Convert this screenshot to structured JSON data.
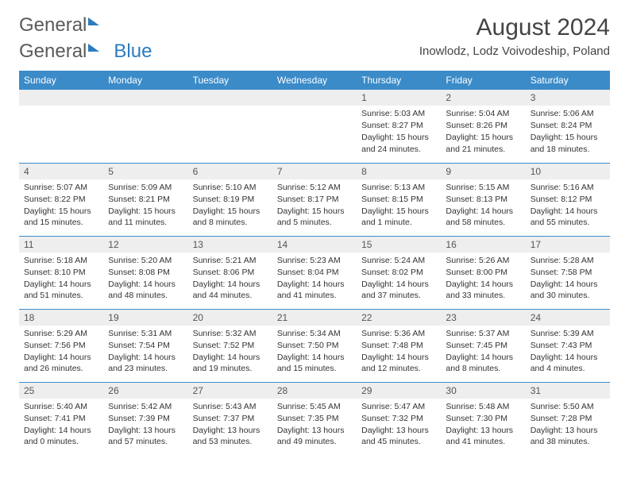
{
  "logo": {
    "part1": "General",
    "part2": "Blue"
  },
  "title": "August 2024",
  "subtitle": "Inowlodz, Lodz Voivodeship, Poland",
  "colors": {
    "header_bg": "#3b8bc8",
    "header_text": "#ffffff",
    "daynum_bg": "#eeeeee",
    "row_border": "#3b8bc8",
    "logo_gray": "#5a5a5a",
    "logo_blue": "#2b7bbf",
    "body_text": "#333333"
  },
  "typography": {
    "title_fontsize": 30,
    "subtitle_fontsize": 15,
    "header_fontsize": 12,
    "daynum_fontsize": 12,
    "cell_fontsize": 10.5
  },
  "weekdays": [
    "Sunday",
    "Monday",
    "Tuesday",
    "Wednesday",
    "Thursday",
    "Friday",
    "Saturday"
  ],
  "weeks": [
    [
      null,
      null,
      null,
      null,
      {
        "n": "1",
        "sr": "Sunrise: 5:03 AM",
        "ss": "Sunset: 8:27 PM",
        "dl": "Daylight: 15 hours and 24 minutes."
      },
      {
        "n": "2",
        "sr": "Sunrise: 5:04 AM",
        "ss": "Sunset: 8:26 PM",
        "dl": "Daylight: 15 hours and 21 minutes."
      },
      {
        "n": "3",
        "sr": "Sunrise: 5:06 AM",
        "ss": "Sunset: 8:24 PM",
        "dl": "Daylight: 15 hours and 18 minutes."
      }
    ],
    [
      {
        "n": "4",
        "sr": "Sunrise: 5:07 AM",
        "ss": "Sunset: 8:22 PM",
        "dl": "Daylight: 15 hours and 15 minutes."
      },
      {
        "n": "5",
        "sr": "Sunrise: 5:09 AM",
        "ss": "Sunset: 8:21 PM",
        "dl": "Daylight: 15 hours and 11 minutes."
      },
      {
        "n": "6",
        "sr": "Sunrise: 5:10 AM",
        "ss": "Sunset: 8:19 PM",
        "dl": "Daylight: 15 hours and 8 minutes."
      },
      {
        "n": "7",
        "sr": "Sunrise: 5:12 AM",
        "ss": "Sunset: 8:17 PM",
        "dl": "Daylight: 15 hours and 5 minutes."
      },
      {
        "n": "8",
        "sr": "Sunrise: 5:13 AM",
        "ss": "Sunset: 8:15 PM",
        "dl": "Daylight: 15 hours and 1 minute."
      },
      {
        "n": "9",
        "sr": "Sunrise: 5:15 AM",
        "ss": "Sunset: 8:13 PM",
        "dl": "Daylight: 14 hours and 58 minutes."
      },
      {
        "n": "10",
        "sr": "Sunrise: 5:16 AM",
        "ss": "Sunset: 8:12 PM",
        "dl": "Daylight: 14 hours and 55 minutes."
      }
    ],
    [
      {
        "n": "11",
        "sr": "Sunrise: 5:18 AM",
        "ss": "Sunset: 8:10 PM",
        "dl": "Daylight: 14 hours and 51 minutes."
      },
      {
        "n": "12",
        "sr": "Sunrise: 5:20 AM",
        "ss": "Sunset: 8:08 PM",
        "dl": "Daylight: 14 hours and 48 minutes."
      },
      {
        "n": "13",
        "sr": "Sunrise: 5:21 AM",
        "ss": "Sunset: 8:06 PM",
        "dl": "Daylight: 14 hours and 44 minutes."
      },
      {
        "n": "14",
        "sr": "Sunrise: 5:23 AM",
        "ss": "Sunset: 8:04 PM",
        "dl": "Daylight: 14 hours and 41 minutes."
      },
      {
        "n": "15",
        "sr": "Sunrise: 5:24 AM",
        "ss": "Sunset: 8:02 PM",
        "dl": "Daylight: 14 hours and 37 minutes."
      },
      {
        "n": "16",
        "sr": "Sunrise: 5:26 AM",
        "ss": "Sunset: 8:00 PM",
        "dl": "Daylight: 14 hours and 33 minutes."
      },
      {
        "n": "17",
        "sr": "Sunrise: 5:28 AM",
        "ss": "Sunset: 7:58 PM",
        "dl": "Daylight: 14 hours and 30 minutes."
      }
    ],
    [
      {
        "n": "18",
        "sr": "Sunrise: 5:29 AM",
        "ss": "Sunset: 7:56 PM",
        "dl": "Daylight: 14 hours and 26 minutes."
      },
      {
        "n": "19",
        "sr": "Sunrise: 5:31 AM",
        "ss": "Sunset: 7:54 PM",
        "dl": "Daylight: 14 hours and 23 minutes."
      },
      {
        "n": "20",
        "sr": "Sunrise: 5:32 AM",
        "ss": "Sunset: 7:52 PM",
        "dl": "Daylight: 14 hours and 19 minutes."
      },
      {
        "n": "21",
        "sr": "Sunrise: 5:34 AM",
        "ss": "Sunset: 7:50 PM",
        "dl": "Daylight: 14 hours and 15 minutes."
      },
      {
        "n": "22",
        "sr": "Sunrise: 5:36 AM",
        "ss": "Sunset: 7:48 PM",
        "dl": "Daylight: 14 hours and 12 minutes."
      },
      {
        "n": "23",
        "sr": "Sunrise: 5:37 AM",
        "ss": "Sunset: 7:45 PM",
        "dl": "Daylight: 14 hours and 8 minutes."
      },
      {
        "n": "24",
        "sr": "Sunrise: 5:39 AM",
        "ss": "Sunset: 7:43 PM",
        "dl": "Daylight: 14 hours and 4 minutes."
      }
    ],
    [
      {
        "n": "25",
        "sr": "Sunrise: 5:40 AM",
        "ss": "Sunset: 7:41 PM",
        "dl": "Daylight: 14 hours and 0 minutes."
      },
      {
        "n": "26",
        "sr": "Sunrise: 5:42 AM",
        "ss": "Sunset: 7:39 PM",
        "dl": "Daylight: 13 hours and 57 minutes."
      },
      {
        "n": "27",
        "sr": "Sunrise: 5:43 AM",
        "ss": "Sunset: 7:37 PM",
        "dl": "Daylight: 13 hours and 53 minutes."
      },
      {
        "n": "28",
        "sr": "Sunrise: 5:45 AM",
        "ss": "Sunset: 7:35 PM",
        "dl": "Daylight: 13 hours and 49 minutes."
      },
      {
        "n": "29",
        "sr": "Sunrise: 5:47 AM",
        "ss": "Sunset: 7:32 PM",
        "dl": "Daylight: 13 hours and 45 minutes."
      },
      {
        "n": "30",
        "sr": "Sunrise: 5:48 AM",
        "ss": "Sunset: 7:30 PM",
        "dl": "Daylight: 13 hours and 41 minutes."
      },
      {
        "n": "31",
        "sr": "Sunrise: 5:50 AM",
        "ss": "Sunset: 7:28 PM",
        "dl": "Daylight: 13 hours and 38 minutes."
      }
    ]
  ]
}
